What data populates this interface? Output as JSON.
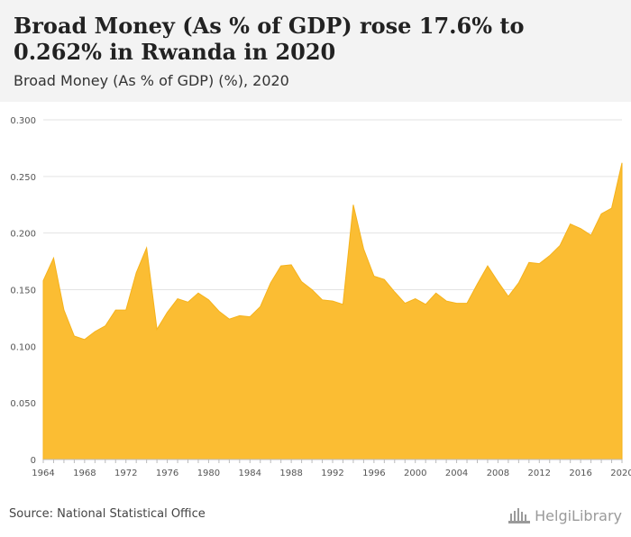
{
  "header": {
    "title": "Broad Money (As % of GDP) rose 17.6% to 0.262% in Rwanda in 2020",
    "subtitle": "Broad Money (As % of GDP) (%), 2020"
  },
  "footer": {
    "source": "Source: National Statistical Office",
    "logo_text": "HelgiLibrary"
  },
  "colors": {
    "area_fill": "#fbbd33",
    "area_stroke": "#f5b21b",
    "header_bg": "#f3f3f3",
    "grid": "#e3e3e3"
  },
  "chart_data": {
    "type": "area",
    "x": [
      1964,
      1965,
      1966,
      1967,
      1968,
      1969,
      1970,
      1971,
      1972,
      1973,
      1974,
      1975,
      1976,
      1977,
      1978,
      1979,
      1980,
      1981,
      1982,
      1983,
      1984,
      1985,
      1986,
      1987,
      1988,
      1989,
      1990,
      1991,
      1992,
      1993,
      1994,
      1995,
      1996,
      1997,
      1998,
      1999,
      2000,
      2001,
      2002,
      2003,
      2004,
      2005,
      2006,
      2007,
      2008,
      2009,
      2010,
      2011,
      2012,
      2013,
      2014,
      2015,
      2016,
      2017,
      2018,
      2019,
      2020
    ],
    "values": [
      0.158,
      0.178,
      0.132,
      0.109,
      0.106,
      0.113,
      0.118,
      0.132,
      0.132,
      0.165,
      0.187,
      0.115,
      0.13,
      0.142,
      0.139,
      0.147,
      0.141,
      0.131,
      0.124,
      0.127,
      0.126,
      0.135,
      0.156,
      0.171,
      0.172,
      0.157,
      0.15,
      0.141,
      0.14,
      0.137,
      0.225,
      0.186,
      0.162,
      0.159,
      0.148,
      0.138,
      0.142,
      0.137,
      0.147,
      0.14,
      0.138,
      0.138,
      0.155,
      0.171,
      0.157,
      0.144,
      0.156,
      0.174,
      0.173,
      0.18,
      0.189,
      0.208,
      0.204,
      0.198,
      0.217,
      0.222,
      0.262
    ],
    "xticks": [
      1964,
      1968,
      1972,
      1976,
      1980,
      1984,
      1988,
      1992,
      1996,
      2000,
      2004,
      2008,
      2012,
      2016,
      2020
    ],
    "yticks": [
      0,
      0.05,
      0.1,
      0.15,
      0.2,
      0.25,
      0.3
    ],
    "ytick_labels": [
      "0",
      "0.050",
      "0.100",
      "0.150",
      "0.200",
      "0.250",
      "0.300"
    ],
    "ylim": [
      0,
      0.3
    ],
    "xlim": [
      1964,
      2020
    ],
    "grid": true,
    "xlabel": "",
    "ylabel": ""
  }
}
